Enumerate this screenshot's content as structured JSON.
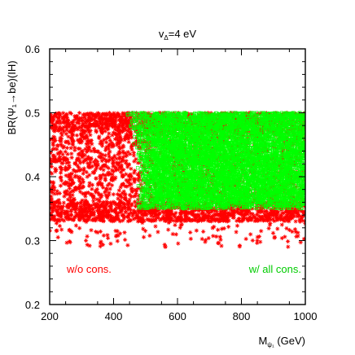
{
  "chart_data": {
    "type": "scatter",
    "title": "v",
    "title_subscript": "Δ",
    "title_suffix": "=4 eV",
    "xlabel": "M",
    "xlabel_subscript": "ψ₁",
    "xlabel_suffix": " (GeV)",
    "ylabel": "BR(Ψ₁→be)(IH)",
    "xlim": [
      200,
      1000
    ],
    "ylim": [
      0.2,
      0.6
    ],
    "xticks": [
      200,
      400,
      600,
      800,
      1000
    ],
    "yticks": [
      0.2,
      0.3,
      0.4,
      0.5,
      0.6
    ],
    "grid": false,
    "annotations": {
      "red_label": "w/o cons.",
      "green_label": "w/ all cons."
    },
    "colors": {
      "red": "#ff0000",
      "green": "#00ff00",
      "frame": "#000000"
    },
    "series": [
      {
        "name": "w/o cons.",
        "marker": "star",
        "color": "#ff0000",
        "region": {
          "x": [
            200,
            1000
          ],
          "y_dense": [
            0.33,
            0.5
          ],
          "y_sparse_low": 0.29
        }
      },
      {
        "name": "w/ all cons.",
        "marker": "open-square",
        "color": "#00ff00",
        "region": {
          "x_start_at_top": 450,
          "x_start_at_middle": 490,
          "x_end": 1000,
          "y": [
            0.35,
            0.5
          ]
        }
      }
    ]
  }
}
